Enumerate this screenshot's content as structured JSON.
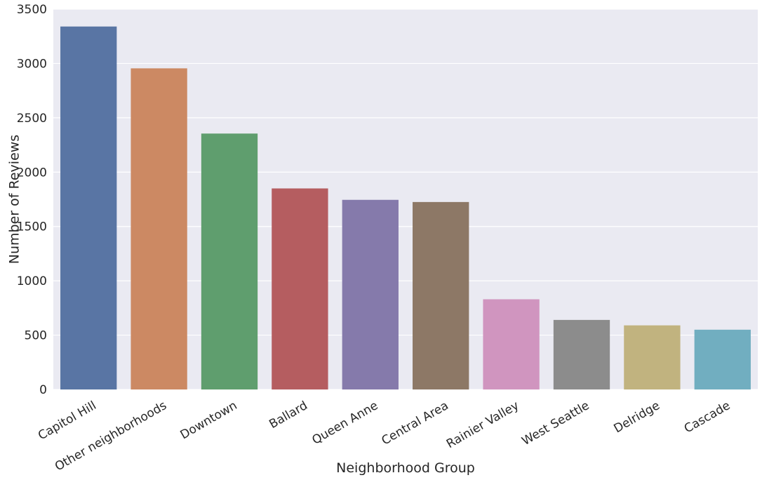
{
  "chart_data": {
    "type": "bar",
    "xlabel": "Neighborhood Group",
    "ylabel": "Number of Reviews",
    "categories": [
      "Capitol Hill",
      "Other neighborhoods",
      "Downtown",
      "Ballard",
      "Queen Anne",
      "Central Area",
      "Rainier Valley",
      "West Seattle",
      "Delridge",
      "Cascade"
    ],
    "values": [
      3340,
      2955,
      2355,
      1850,
      1745,
      1725,
      830,
      640,
      590,
      550
    ],
    "colors": [
      "#5975a4",
      "#cc8963",
      "#5f9e6e",
      "#b55d60",
      "#857aab",
      "#8d7866",
      "#d095bf",
      "#8c8c8c",
      "#c1b37f",
      "#71aec0"
    ],
    "ylim": [
      0,
      3500
    ],
    "yticks": [
      0,
      500,
      1000,
      1500,
      2000,
      2500,
      3000,
      3500
    ],
    "grid": true,
    "style": {
      "background": "#eaeaf2",
      "grid_color": "#ffffff"
    }
  }
}
